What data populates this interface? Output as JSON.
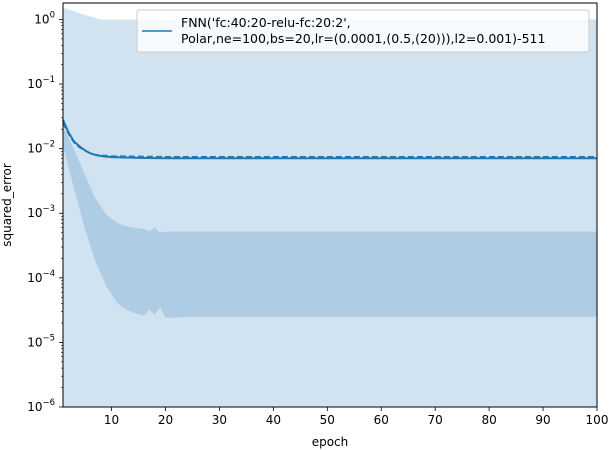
{
  "chart_data": {
    "type": "line",
    "title": "",
    "xlabel": "epoch",
    "ylabel": "squared_error",
    "xlim": [
      1,
      100
    ],
    "ylim": [
      1e-06,
      1.8
    ],
    "yscale": "log",
    "grid": false,
    "legend_position": "top-right",
    "x_ticks": [
      "10",
      "20",
      "30",
      "40",
      "50",
      "60",
      "70",
      "80",
      "90",
      "100"
    ],
    "y_ticks": [
      {
        "exp": 0,
        "label": "0"
      },
      {
        "exp": -1,
        "label": "−1"
      },
      {
        "exp": -2,
        "label": "−2"
      },
      {
        "exp": -3,
        "label": "−3"
      },
      {
        "exp": -4,
        "label": "−4"
      },
      {
        "exp": -5,
        "label": "−5"
      },
      {
        "exp": -6,
        "label": "−6"
      }
    ],
    "colors": {
      "line": "#1f77b4",
      "band_outer": "#d1e3f0",
      "band_inner": "#aecce3"
    },
    "series": [
      {
        "name": "FNN('fc:40:20-relu-fc:20:2',\nPolar,ne=100,bs=20,lr=(0.0001,(0.5,(20))),l2=0.001)-511",
        "x": [
          1,
          2,
          3,
          4,
          5,
          6,
          7,
          8,
          10,
          15,
          20,
          30,
          40,
          50,
          60,
          70,
          80,
          90,
          100
        ],
        "solid": [
          0.028,
          0.018,
          0.013,
          0.011,
          0.0095,
          0.0085,
          0.008,
          0.0077,
          0.0074,
          0.0072,
          0.0071,
          0.0071,
          0.0071,
          0.0071,
          0.0071,
          0.0071,
          0.0071,
          0.0071,
          0.0071
        ],
        "dashed": [
          0.025,
          0.017,
          0.0125,
          0.0105,
          0.0093,
          0.0085,
          0.0081,
          0.0079,
          0.0077,
          0.0076,
          0.0075,
          0.0075,
          0.0075,
          0.0075,
          0.0075,
          0.0075,
          0.0075,
          0.0075,
          0.0075
        ]
      }
    ],
    "band_outer": {
      "x": [
        1,
        4,
        8,
        100
      ],
      "upper": [
        1.55,
        1.25,
        1.0,
        1.0
      ],
      "lower": [
        1e-06,
        1e-06,
        1e-06,
        1e-06
      ]
    },
    "band_inner": {
      "x": [
        1,
        3,
        5,
        7,
        9,
        11,
        12,
        14,
        16,
        17,
        18,
        19,
        20,
        25,
        30,
        40,
        50,
        60,
        70,
        80,
        90,
        100
      ],
      "upper": [
        0.022,
        0.01,
        0.004,
        0.0017,
        0.00095,
        0.00072,
        0.00065,
        0.0006,
        0.00057,
        0.00053,
        0.0006,
        0.0005,
        0.00052,
        0.00052,
        0.00052,
        0.00052,
        0.00052,
        0.00052,
        0.00052,
        0.00052,
        0.00052,
        0.00052
      ],
      "lower": [
        0.011,
        0.0025,
        0.0006,
        0.00018,
        7.5e-05,
        4.2e-05,
        3.5e-05,
        2.9e-05,
        2.6e-05,
        3.2e-05,
        2.7e-05,
        3.5e-05,
        2.4e-05,
        2.5e-05,
        2.5e-05,
        2.5e-05,
        2.5e-05,
        2.5e-05,
        2.5e-05,
        2.5e-05,
        2.5e-05,
        2.5e-05
      ]
    }
  }
}
